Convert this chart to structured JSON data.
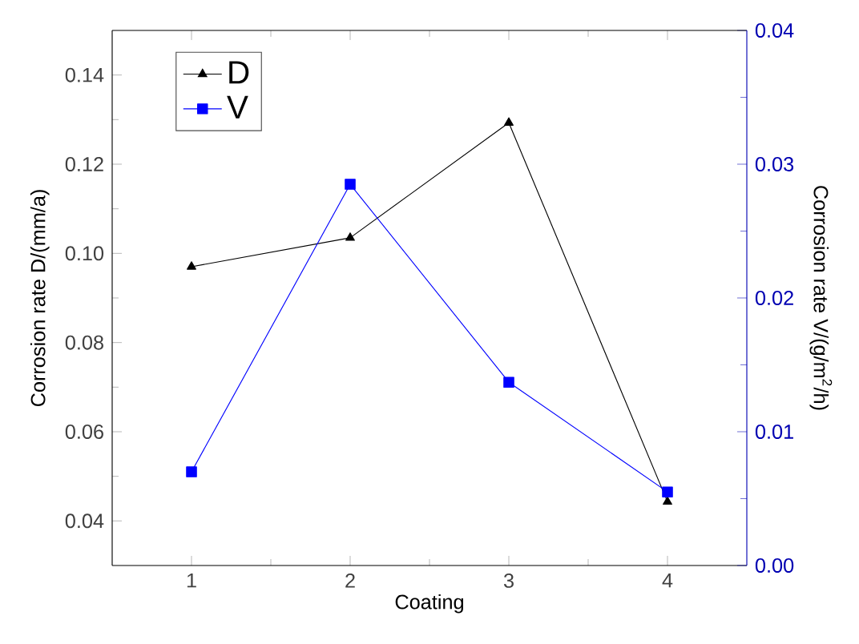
{
  "chart_data": {
    "type": "line",
    "xlabel": "Coating",
    "ylabel": "Corrosion rate D/(mm/a)",
    "y2label": "Corrosion rate V/(g/m$^{2}$/h)",
    "x": [
      1,
      2,
      3,
      4
    ],
    "xlim": [
      0.5,
      4.5
    ],
    "xticks": [
      1,
      2,
      3,
      4
    ],
    "ylim": [
      0.03,
      0.15
    ],
    "yticks": [
      0.04,
      0.06,
      0.08,
      {
        "value": 0.1,
        "label": "0.10"
      },
      0.12,
      0.14
    ],
    "y2lim": [
      0.0,
      0.04
    ],
    "y2ticks": [
      {
        "value": 0,
        "label": "0.00"
      },
      0.01,
      0.02,
      0.03,
      0.04
    ],
    "series": [
      {
        "name": "D",
        "color": "#000000",
        "marker": "triangle",
        "line_style": "solid",
        "values": [
          0.097,
          0.1035,
          0.1293,
          0.0443
        ]
      },
      {
        "name": "V",
        "color": "#0000ff",
        "marker": "square",
        "line_style": "solid",
        "axis": "y2",
        "values": [
          0.007,
          0.0285,
          0.0137,
          0.0055
        ]
      }
    ],
    "legend": "top left",
    "grid": false
  }
}
